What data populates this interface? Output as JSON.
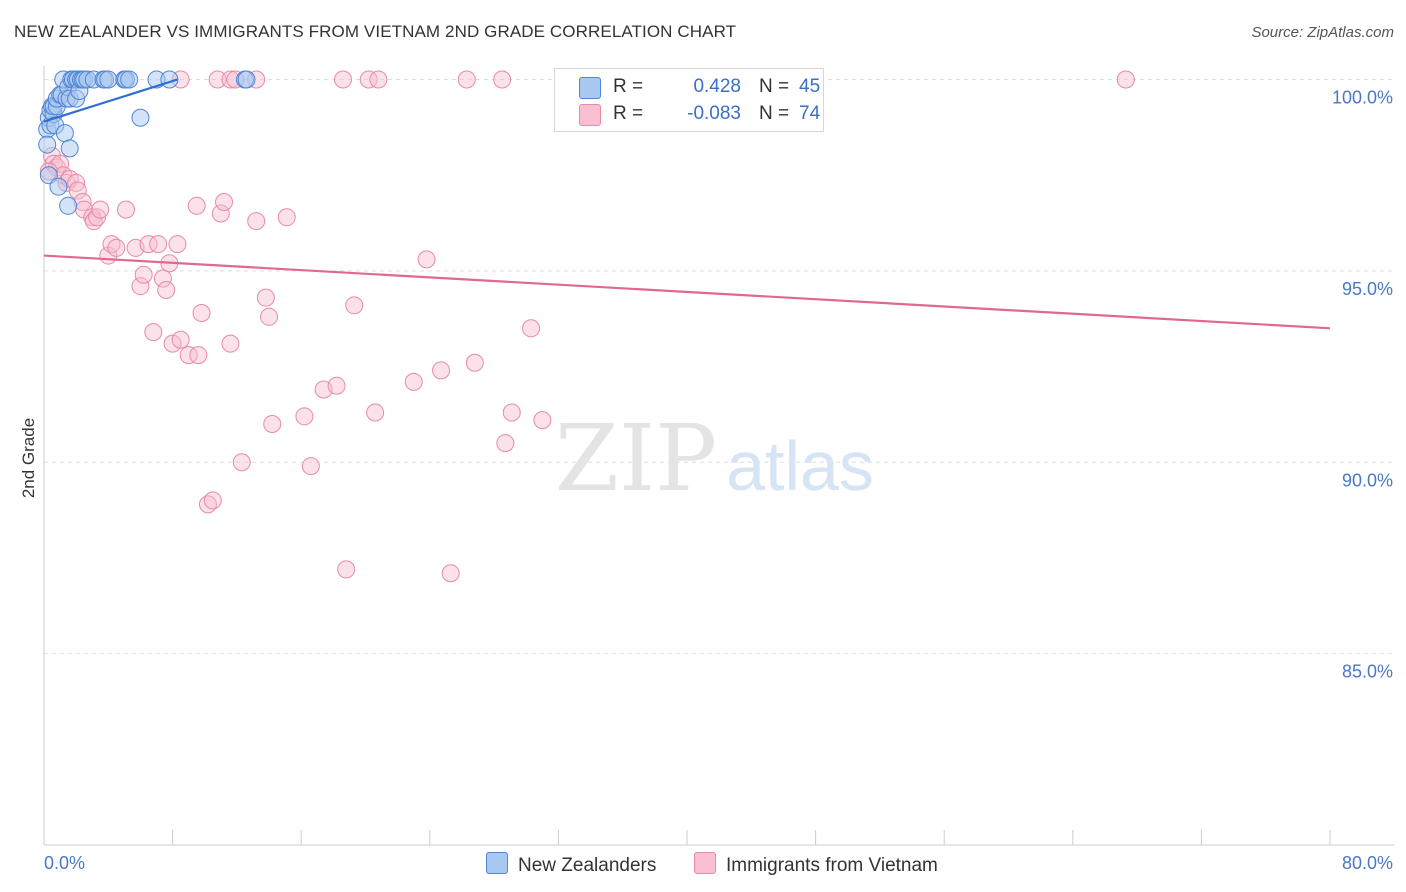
{
  "title": "NEW ZEALANDER VS IMMIGRANTS FROM VIETNAM 2ND GRADE CORRELATION CHART",
  "source": "Source: ZipAtlas.com",
  "watermark": {
    "zip": "ZIP",
    "atlas": "atlas"
  },
  "legend": {
    "r_label": "R =",
    "n_label": "N =",
    "rows": [
      {
        "r": "0.428",
        "n": "45"
      },
      {
        "r": "-0.083",
        "n": "74"
      }
    ]
  },
  "colors": {
    "blue_fill": "#a9c8ef",
    "blue_stroke": "#4f86d6",
    "blue_line": "#2f6fcf",
    "pink_fill": "#f7bfd0",
    "pink_stroke": "#e88aa8",
    "pink_line": "#e06891",
    "tick_label": "#4a78c6",
    "grid": "#dddddd"
  },
  "chart_data": {
    "type": "scatter",
    "title": "NEW ZEALANDER VS IMMIGRANTS FROM VIETNAM 2ND GRADE CORRELATION CHART",
    "xlabel": "",
    "ylabel": "2nd Grade",
    "xlim": [
      0,
      80
    ],
    "ylim": [
      80.5,
      100.5
    ],
    "x_tick_labels": [
      "0.0%",
      "80.0%"
    ],
    "y_ticks": [
      85,
      90,
      95,
      100
    ],
    "y_tick_labels": [
      "85.0%",
      "90.0%",
      "95.0%",
      "100.0%"
    ],
    "series": [
      {
        "name": "New Zealanders",
        "r": 0.428,
        "n": 45,
        "trend": {
          "x": [
            0,
            8.3
          ],
          "y": [
            98.9,
            100.0
          ]
        },
        "points": [
          [
            0.2,
            98.7
          ],
          [
            0.2,
            98.3
          ],
          [
            0.3,
            97.5
          ],
          [
            0.3,
            99.0
          ],
          [
            0.4,
            98.8
          ],
          [
            0.4,
            99.2
          ],
          [
            0.5,
            99.3
          ],
          [
            0.6,
            99.1
          ],
          [
            0.6,
            99.3
          ],
          [
            0.7,
            98.8
          ],
          [
            0.8,
            99.3
          ],
          [
            0.8,
            99.5
          ],
          [
            0.9,
            97.2
          ],
          [
            1.0,
            99.6
          ],
          [
            1.1,
            99.6
          ],
          [
            1.2,
            100.0
          ],
          [
            1.3,
            98.6
          ],
          [
            1.4,
            99.5
          ],
          [
            1.5,
            99.8
          ],
          [
            1.6,
            99.5
          ],
          [
            1.7,
            100.0
          ],
          [
            1.8,
            100.0
          ],
          [
            2.0,
            99.5
          ],
          [
            2.0,
            100.0
          ],
          [
            2.1,
            100.0
          ],
          [
            2.2,
            99.7
          ],
          [
            2.3,
            100.0
          ],
          [
            2.4,
            100.0
          ],
          [
            2.5,
            100.0
          ],
          [
            2.7,
            100.0
          ],
          [
            3.1,
            100.0
          ],
          [
            3.7,
            100.0
          ],
          [
            3.8,
            100.0
          ],
          [
            4.0,
            100.0
          ],
          [
            5.0,
            100.0
          ],
          [
            5.0,
            100.0
          ],
          [
            5.1,
            100.0
          ],
          [
            5.3,
            100.0
          ],
          [
            7.0,
            100.0
          ],
          [
            7.8,
            100.0
          ],
          [
            12.5,
            100.0
          ],
          [
            12.6,
            100.0
          ],
          [
            1.5,
            96.7
          ],
          [
            1.6,
            98.2
          ],
          [
            6.0,
            99.0
          ]
        ]
      },
      {
        "name": "Immigrants from Vietnam",
        "r": -0.083,
        "n": 74,
        "trend": {
          "x": [
            0,
            80
          ],
          "y": [
            95.4,
            93.5
          ]
        },
        "points": [
          [
            0.5,
            98.0
          ],
          [
            0.6,
            97.8
          ],
          [
            0.8,
            97.7
          ],
          [
            1.0,
            97.8
          ],
          [
            1.2,
            97.5
          ],
          [
            1.4,
            97.3
          ],
          [
            1.6,
            97.4
          ],
          [
            2.0,
            97.3
          ],
          [
            2.1,
            97.1
          ],
          [
            2.4,
            96.8
          ],
          [
            2.5,
            96.6
          ],
          [
            3.0,
            96.4
          ],
          [
            3.1,
            96.3
          ],
          [
            3.3,
            96.4
          ],
          [
            3.5,
            96.6
          ],
          [
            4.0,
            95.4
          ],
          [
            4.2,
            95.7
          ],
          [
            4.5,
            95.6
          ],
          [
            5.1,
            96.6
          ],
          [
            5.7,
            95.6
          ],
          [
            6.0,
            94.6
          ],
          [
            6.2,
            94.9
          ],
          [
            6.5,
            95.7
          ],
          [
            6.8,
            93.4
          ],
          [
            7.1,
            95.7
          ],
          [
            7.4,
            94.8
          ],
          [
            7.6,
            94.5
          ],
          [
            7.8,
            95.2
          ],
          [
            8.0,
            93.1
          ],
          [
            8.3,
            95.7
          ],
          [
            8.5,
            93.2
          ],
          [
            9.0,
            92.8
          ],
          [
            9.5,
            96.7
          ],
          [
            9.6,
            92.8
          ],
          [
            9.8,
            93.9
          ],
          [
            10.2,
            88.9
          ],
          [
            10.5,
            89.0
          ],
          [
            11.0,
            96.5
          ],
          [
            11.2,
            96.8
          ],
          [
            11.6,
            93.1
          ],
          [
            12.3,
            90.0
          ],
          [
            13.2,
            96.3
          ],
          [
            13.8,
            94.3
          ],
          [
            14.0,
            93.8
          ],
          [
            14.2,
            91.0
          ],
          [
            15.1,
            96.4
          ],
          [
            16.2,
            91.2
          ],
          [
            16.6,
            89.9
          ],
          [
            17.4,
            91.9
          ],
          [
            18.2,
            92.0
          ],
          [
            18.8,
            87.2
          ],
          [
            19.3,
            94.1
          ],
          [
            20.6,
            91.3
          ],
          [
            23.0,
            92.1
          ],
          [
            23.8,
            95.3
          ],
          [
            24.7,
            92.4
          ],
          [
            25.3,
            87.1
          ],
          [
            26.8,
            92.6
          ],
          [
            28.7,
            90.5
          ],
          [
            29.1,
            91.3
          ],
          [
            30.3,
            93.5
          ],
          [
            31.0,
            91.1
          ],
          [
            8.5,
            100.0
          ],
          [
            10.8,
            100.0
          ],
          [
            11.6,
            100.0
          ],
          [
            11.9,
            100.0
          ],
          [
            13.2,
            100.0
          ],
          [
            18.6,
            100.0
          ],
          [
            20.2,
            100.0
          ],
          [
            20.8,
            100.0
          ],
          [
            26.3,
            100.0
          ],
          [
            28.5,
            100.0
          ],
          [
            67.3,
            100.0
          ],
          [
            0.3,
            97.6
          ]
        ]
      }
    ],
    "legend_entries": [
      "New Zealanders",
      "Immigrants from Vietnam"
    ]
  }
}
